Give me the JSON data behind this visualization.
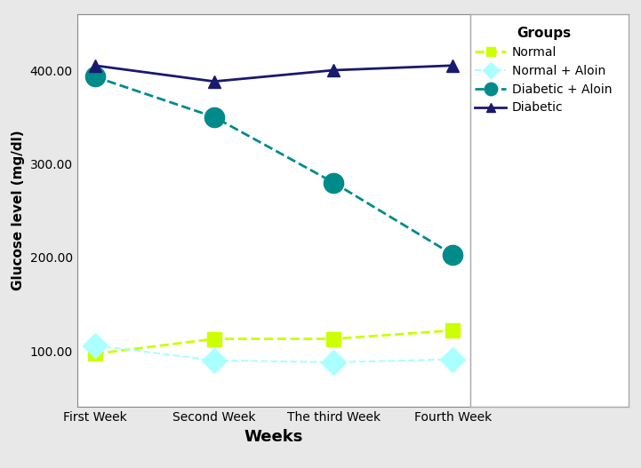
{
  "x_labels": [
    "First Week",
    "Second Week",
    "The third Week",
    "Fourth Week"
  ],
  "x_positions": [
    0,
    1,
    2,
    3
  ],
  "series": {
    "Normal": {
      "values": [
        97,
        113,
        113,
        122
      ],
      "color": "#ccff00",
      "linestyle": "--",
      "marker": "s",
      "markersize": 11,
      "linewidth": 2,
      "label": "Normal"
    },
    "Normal + Aloin": {
      "values": [
        106,
        90,
        88,
        91
      ],
      "color": "#aaffff",
      "linestyle": "--",
      "marker": "D",
      "markersize": 14,
      "linewidth": 1.5,
      "label": "Normal + Aloin"
    },
    "Diabetic + Aloin": {
      "values": [
        393,
        350,
        280,
        203
      ],
      "color": "#008b8b",
      "linestyle": "--",
      "marker": "o",
      "markersize": 16,
      "linewidth": 2,
      "label": "Diabetic + Aloin"
    },
    "Diabetic": {
      "values": [
        405,
        388,
        400,
        405
      ],
      "color": "#191970",
      "linestyle": "-",
      "marker": "^",
      "markersize": 10,
      "linewidth": 2,
      "label": "Diabetic"
    }
  },
  "xlabel": "Weeks",
  "ylabel": "Glucose level (mg/dl)",
  "ylim": [
    40,
    460
  ],
  "yticks": [
    100.0,
    200.0,
    300.0,
    400.0
  ],
  "legend_title": "Groups",
  "legend_order": [
    "Normal",
    "Normal + Aloin",
    "Diabetic + Aloin",
    "Diabetic"
  ],
  "plot_bg": "#ffffff",
  "fig_bg": "#e8e8e8"
}
